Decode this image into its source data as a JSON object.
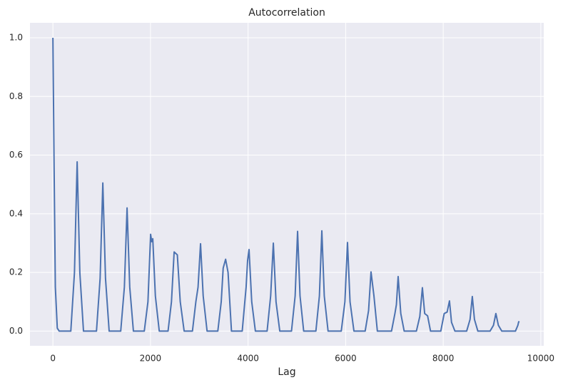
{
  "chart_data": {
    "type": "line",
    "title": "Autocorrelation",
    "x_label": "Lag",
    "x": [
      0,
      25,
      50,
      90,
      130,
      367,
      442,
      497,
      552,
      627,
      893,
      968,
      1023,
      1078,
      1153,
      1390,
      1465,
      1520,
      1575,
      1650,
      1873,
      1948,
      2003,
      2025,
      2047,
      2100,
      2180,
      2360,
      2430,
      2485,
      2550,
      2610,
      2690,
      2860,
      2930,
      2975,
      3026,
      3080,
      3160,
      3380,
      3450,
      3490,
      3540,
      3590,
      3660,
      3880,
      3960,
      3990,
      4020,
      4075,
      4150,
      4390,
      4463,
      4518,
      4573,
      4650,
      4890,
      4965,
      5015,
      5065,
      5140,
      5390,
      5462,
      5512,
      5562,
      5640,
      5910,
      5985,
      6038,
      6090,
      6170,
      6400,
      6470,
      6520,
      6580,
      6650,
      6940,
      7010,
      7040,
      7076,
      7130,
      7200,
      7450,
      7520,
      7573,
      7620,
      7680,
      7740,
      7950,
      8020,
      8080,
      8128,
      8170,
      8240,
      8480,
      8550,
      8596,
      8640,
      8710,
      8960,
      9030,
      9079,
      9130,
      9200,
      9480,
      9530,
      9547,
      9560
    ],
    "series": [
      {
        "name": "Autocorrelation",
        "color": "#4c72b0",
        "values": [
          1.0,
          0.55,
          0.15,
          0.01,
          0,
          0,
          0.2,
          0.577,
          0.2,
          0,
          0,
          0.18,
          0.505,
          0.18,
          0,
          0,
          0.15,
          0.42,
          0.15,
          0,
          0,
          0.1,
          0.33,
          0.305,
          0.315,
          0.12,
          0,
          0,
          0.1,
          0.27,
          0.26,
          0.1,
          0,
          0,
          0.1,
          0.15,
          0.298,
          0.12,
          0,
          0,
          0.1,
          0.215,
          0.245,
          0.2,
          0,
          0,
          0.15,
          0.24,
          0.278,
          0.1,
          0,
          0,
          0.12,
          0.3,
          0.1,
          0,
          0,
          0.12,
          0.34,
          0.12,
          0,
          0,
          0.12,
          0.342,
          0.12,
          0,
          0,
          0.1,
          0.302,
          0.1,
          0,
          0,
          0.07,
          0.202,
          0.12,
          0,
          0,
          0.06,
          0.09,
          0.186,
          0.06,
          0,
          0,
          0.05,
          0.148,
          0.06,
          0.052,
          0,
          0,
          0.06,
          0.065,
          0.103,
          0.03,
          0,
          0,
          0.04,
          0.118,
          0.04,
          0,
          0,
          0.02,
          0.06,
          0.02,
          0,
          0,
          0.02,
          0.032,
          0.03
        ]
      }
    ],
    "xlim": [
      -470,
      10060
    ],
    "ylim": [
      -0.05,
      1.051
    ],
    "xticks": [
      0,
      2000,
      4000,
      6000,
      8000,
      10000
    ],
    "yticks": [
      {
        "value": 0,
        "label": "0.0"
      },
      {
        "value": 0.2,
        "label": "0.2"
      },
      {
        "value": 0.4,
        "label": "0.4"
      },
      {
        "value": 0.6,
        "label": "0.6"
      },
      {
        "value": 0.8,
        "label": "0.8"
      },
      {
        "value": 1.0,
        "label": "1.0"
      }
    ],
    "grid": true
  }
}
